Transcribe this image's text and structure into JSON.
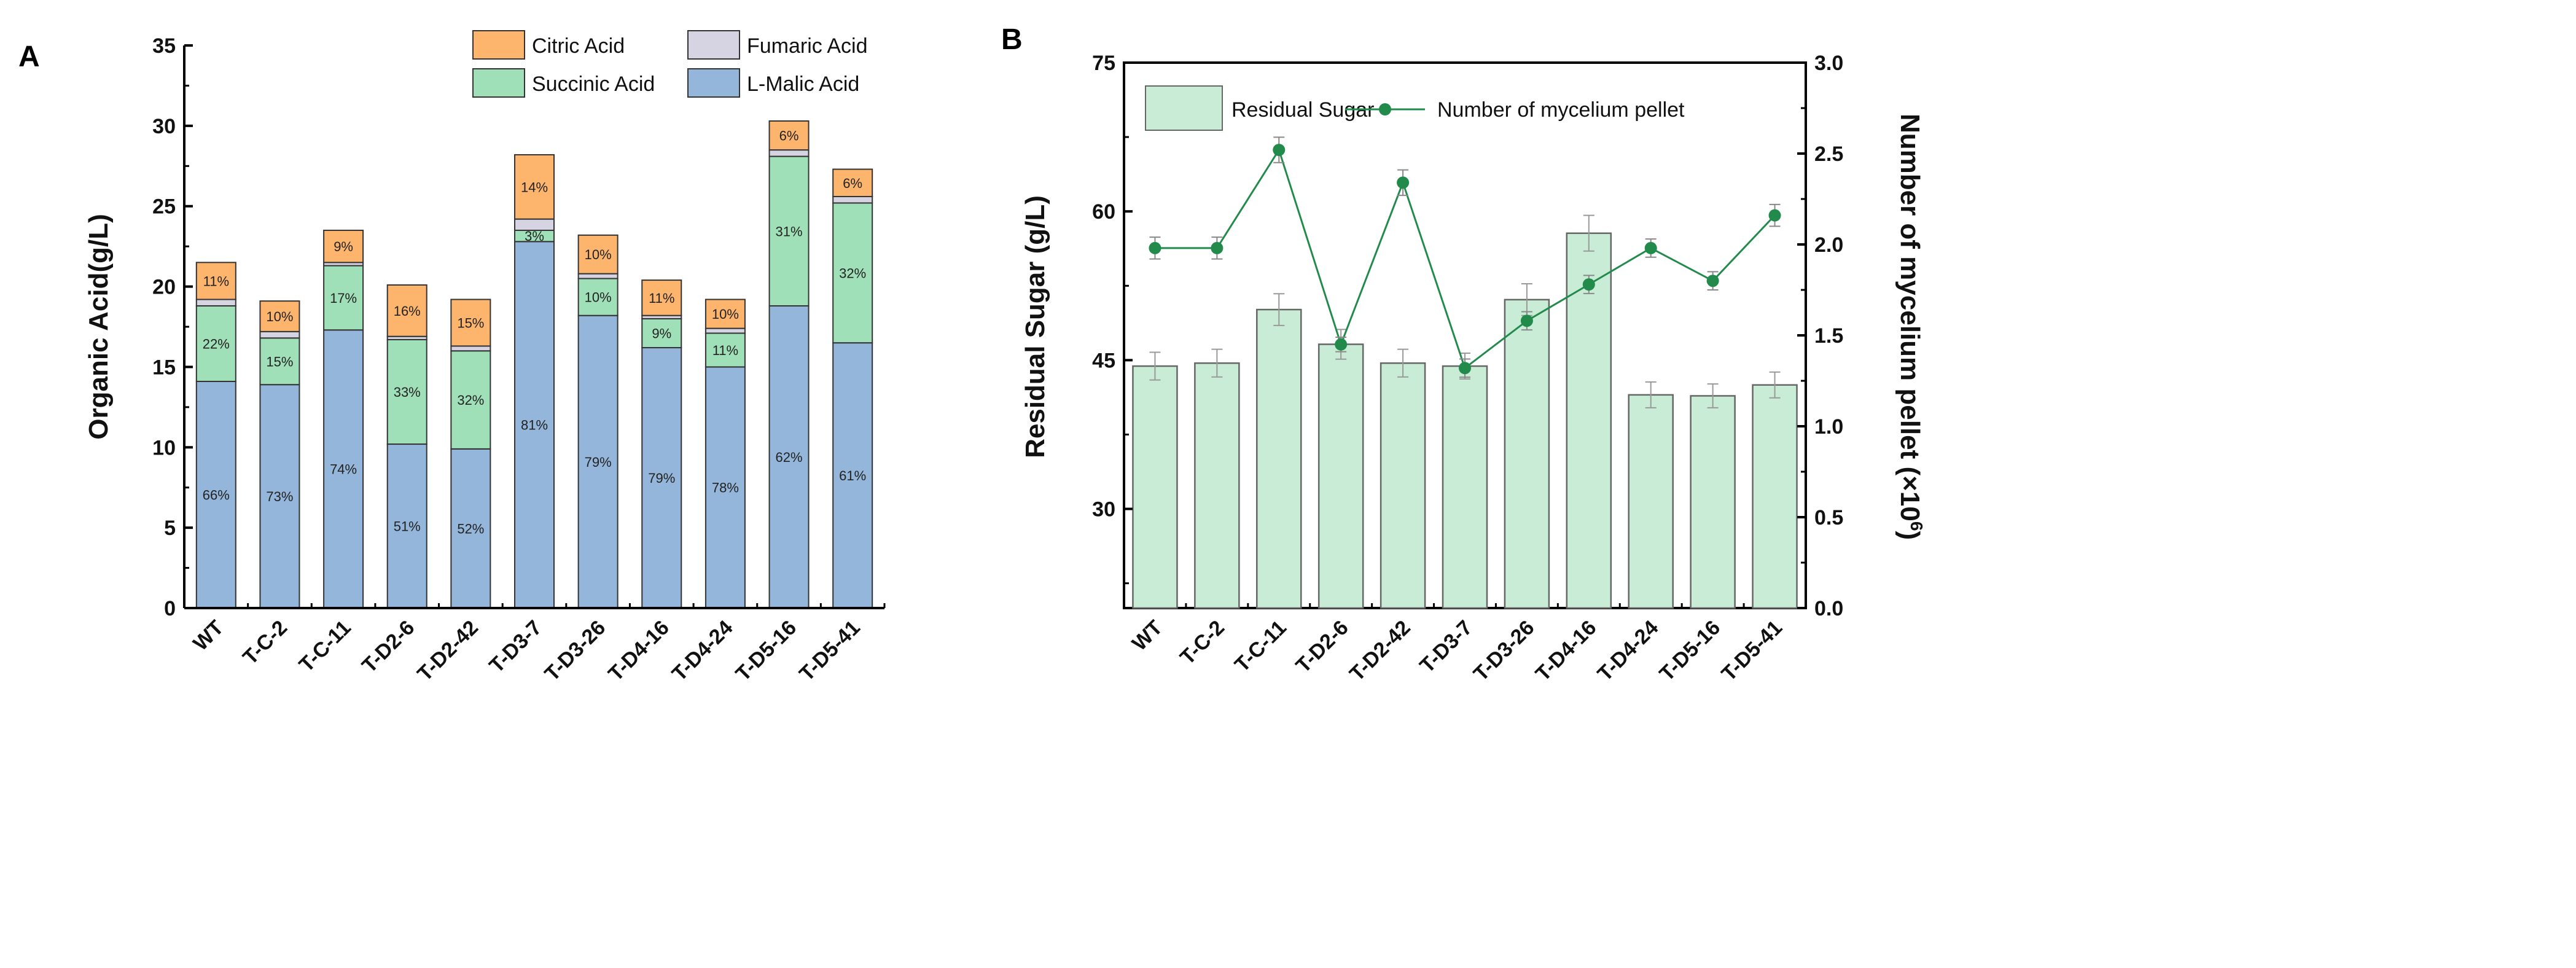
{
  "chart_data": [
    {
      "panel_label": "A",
      "type": "bar",
      "stacked": true,
      "categories": [
        "WT",
        "T-C-2",
        "T-C-11",
        "T-D2-6",
        "T-D2-42",
        "T-D3-7",
        "T-D3-26",
        "T-D4-16",
        "T-D4-24",
        "T-D5-16",
        "T-D5-41"
      ],
      "ylabel": "Organic Acid(g/L)",
      "xlabel": "",
      "ylim": [
        0,
        35
      ],
      "yticks": [
        0,
        5,
        10,
        15,
        20,
        25,
        30,
        35
      ],
      "grid": false,
      "legend": "top-right",
      "series": [
        {
          "name": "L-Malic Acid",
          "color": "#94b6da",
          "values": [
            14.1,
            13.9,
            17.3,
            10.2,
            9.9,
            22.8,
            18.2,
            16.2,
            15.0,
            18.8,
            16.5
          ],
          "labels": [
            "66%",
            "73%",
            "74%",
            "51%",
            "52%",
            "81%",
            "79%",
            "79%",
            "78%",
            "62%",
            "61%"
          ]
        },
        {
          "name": "Succinic Acid",
          "color": "#a0e0b8",
          "values": [
            4.7,
            2.9,
            4.0,
            6.5,
            6.1,
            0.7,
            2.3,
            1.8,
            2.1,
            9.3,
            8.7
          ],
          "labels": [
            "22%",
            "15%",
            "17%",
            "33%",
            "32%",
            "3%",
            "10%",
            "9%",
            "11%",
            "31%",
            "32%"
          ]
        },
        {
          "name": "Fumaric Acid",
          "color": "#d6d4e2",
          "values": [
            0.4,
            0.4,
            0.2,
            0.2,
            0.3,
            0.7,
            0.3,
            0.2,
            0.3,
            0.4,
            0.4
          ],
          "labels": [
            "",
            "",
            "",
            "",
            "",
            "",
            "",
            "",
            "",
            "",
            ""
          ]
        },
        {
          "name": "Citric Acid",
          "color": "#fdb56e",
          "values": [
            2.3,
            1.9,
            2.0,
            3.2,
            2.9,
            4.0,
            2.4,
            2.2,
            1.8,
            1.8,
            1.7
          ],
          "labels": [
            "11%",
            "10%",
            "9%",
            "16%",
            "15%",
            "14%",
            "10%",
            "11%",
            "10%",
            "6%",
            "6%"
          ]
        }
      ],
      "legend_order": [
        "Citric Acid",
        "Fumaric Acid",
        "Succinic Acid",
        "L-Malic Acid"
      ]
    },
    {
      "panel_label": "B",
      "type": "bar+line",
      "categories": [
        "WT",
        "T-C-2",
        "T-C-11",
        "T-D2-6",
        "T-D2-42",
        "T-D3-7",
        "T-D3-26",
        "T-D4-16",
        "T-D4-24",
        "T-D5-16",
        "T-D5-41"
      ],
      "ylabel": "Residual Sugar (g/L)",
      "ylabel_right": "Number of mycelium pellet (×10",
      "ylabel_right_sup": "6",
      "ylabel_right_end": ")",
      "ylim": [
        20,
        75
      ],
      "yticks": [
        30,
        45,
        60,
        75
      ],
      "ylim_right": [
        0,
        3.0
      ],
      "yticks_right": [
        "0.0",
        "0.5",
        "1.0",
        "1.5",
        "2.0",
        "2.5",
        "3.0"
      ],
      "grid": false,
      "legend": "top",
      "bars": {
        "name": "Residual Sugar",
        "color": "#c8ecd6",
        "values": [
          44.4,
          44.7,
          50.1,
          46.6,
          44.7,
          44.4,
          51.1,
          57.8,
          41.5,
          41.4,
          42.5
        ],
        "errors": [
          1.4,
          1.4,
          1.6,
          1.5,
          1.4,
          1.3,
          1.6,
          1.8,
          1.3,
          1.2,
          1.3
        ]
      },
      "line": {
        "name": "Number of mycelium pellet",
        "color": "#228b4c",
        "values": [
          1.98,
          1.98,
          2.52,
          1.45,
          2.34,
          1.32,
          1.58,
          1.78,
          1.98,
          1.8,
          2.16
        ],
        "errors": [
          0.06,
          0.06,
          0.07,
          0.04,
          0.07,
          0.05,
          0.05,
          0.05,
          0.05,
          0.05,
          0.06
        ]
      }
    }
  ]
}
